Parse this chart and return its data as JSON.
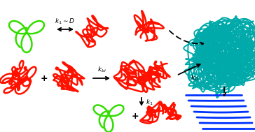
{
  "background_color": "#ffffff",
  "green_color": "#33dd00",
  "red_color": "#ff1100",
  "teal_color": "#00aaaa",
  "blue_color": "#0033ff",
  "black_color": "#000000",
  "figsize": [
    3.64,
    1.89
  ],
  "dpi": 100
}
